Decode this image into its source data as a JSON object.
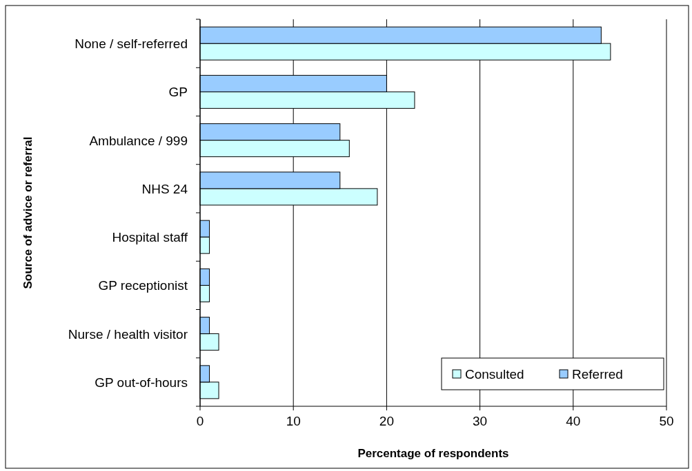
{
  "chart_data": {
    "type": "bar",
    "orientation": "horizontal",
    "xlabel": "Percentage of respondents",
    "ylabel": "Source of advice or referral",
    "categories": [
      "None / self-referred",
      "GP",
      "Ambulance / 999",
      "NHS 24",
      "Hospital staff",
      "GP receptionist",
      "Nurse / health visitor",
      "GP out-of-hours"
    ],
    "series": [
      {
        "name": "Consulted",
        "color": "#ccffff",
        "values": [
          44,
          23,
          16,
          19,
          1,
          1,
          2,
          2
        ]
      },
      {
        "name": "Referred",
        "color": "#99ccff",
        "values": [
          43,
          20,
          15,
          15,
          1,
          1,
          1,
          1
        ]
      }
    ],
    "xlim": [
      0,
      50
    ],
    "xticks": [
      0,
      10,
      20,
      30,
      40,
      50
    ],
    "grid": "x",
    "legend": "bottom right"
  }
}
